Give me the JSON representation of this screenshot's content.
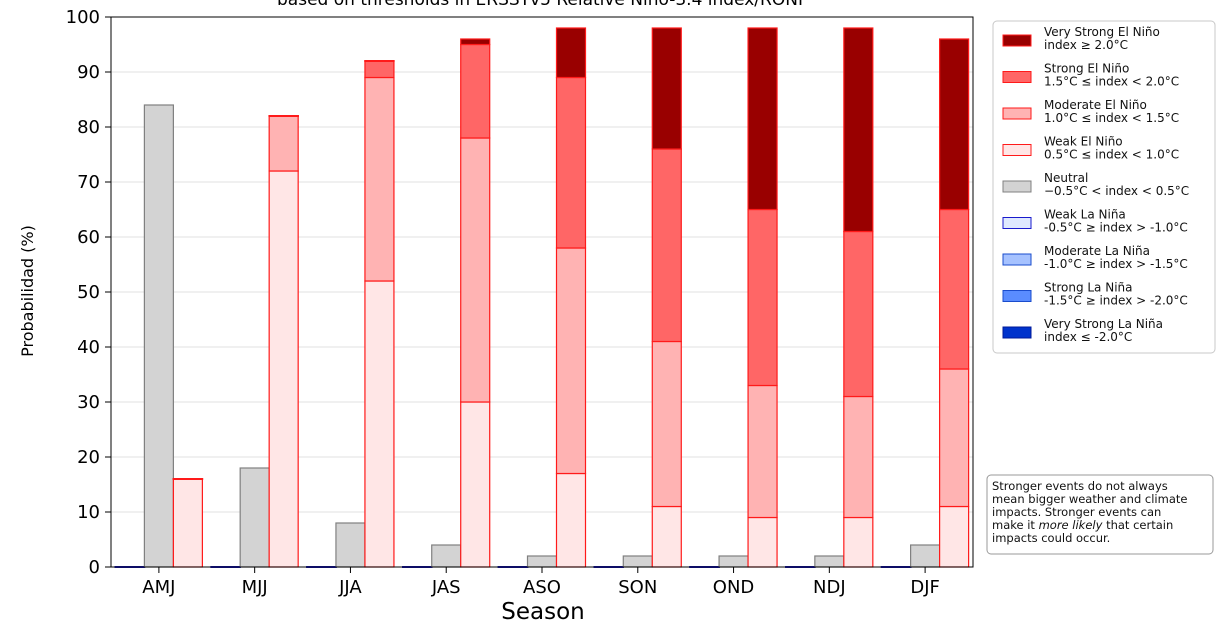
{
  "chart_data": {
    "type": "bar",
    "title": "based on thresholds in ERSSTv5 Relative Niño-3.4 index/RONI",
    "xlabel": "Season",
    "ylabel": "Probabilidad (%)",
    "ylim": [
      0,
      100
    ],
    "yticks": [
      "0",
      "10",
      "20",
      "30",
      "40",
      "50",
      "60",
      "70",
      "80",
      "90",
      "100"
    ],
    "grid": "horizontal",
    "legend_position": "right",
    "categories": [
      "AMJ",
      "MJJ",
      "JJA",
      "JAS",
      "ASO",
      "SON",
      "OND",
      "NDJ",
      "DJF"
    ],
    "stack_groups": [
      {
        "group": "La Niña",
        "series": [
          "Very Strong La Niña",
          "Strong La Niña",
          "Moderate La Niña",
          "Weak La Niña"
        ]
      },
      {
        "group": "Neutral",
        "series": [
          "Neutral"
        ]
      },
      {
        "group": "El Niño",
        "series": [
          "Weak El Niño",
          "Moderate El Niño",
          "Strong El Niño",
          "Very Strong El Niño"
        ]
      }
    ],
    "series": [
      {
        "name": "Very Strong El Niño",
        "range": "index ≥ 2.0°C",
        "fill": "#990000",
        "edge": "#ff1a1a",
        "values": [
          0,
          0,
          0,
          1,
          9,
          22,
          33,
          37,
          31
        ]
      },
      {
        "name": "Strong El Niño",
        "range": "1.5°C ≤ index < 2.0°C",
        "fill": "#ff6666",
        "edge": "#ff1a1a",
        "values": [
          0,
          0,
          3,
          17,
          31,
          35,
          32,
          30,
          29
        ]
      },
      {
        "name": "Moderate El Niño",
        "range": "1.0°C ≤ index < 1.5°C",
        "fill": "#ffb3b3",
        "edge": "#ff1a1a",
        "values": [
          0,
          10,
          37,
          48,
          41,
          30,
          24,
          22,
          25
        ]
      },
      {
        "name": "Weak El Niño",
        "range": "0.5°C ≤ index < 1.0°C",
        "fill": "#ffe6e6",
        "edge": "#ff1a1a",
        "values": [
          16,
          72,
          52,
          30,
          17,
          11,
          9,
          9,
          11
        ]
      },
      {
        "name": "Neutral",
        "range": "−0.5°C < index < 0.5°C",
        "fill": "#d3d3d3",
        "edge": "#808080",
        "values": [
          84,
          18,
          8,
          4,
          2,
          2,
          2,
          2,
          4
        ]
      },
      {
        "name": "Weak La Niña",
        "range": "-0.5°C ≥ index > -1.0°C",
        "fill": "#dfe9ff",
        "edge": "#1a1acc",
        "values": [
          0,
          0,
          0,
          0,
          0,
          0,
          0,
          0,
          0
        ]
      },
      {
        "name": "Moderate La Niña",
        "range": "-1.0°C ≥ index > -1.5°C",
        "fill": "#a6c2ff",
        "edge": "#1a4ccc",
        "values": [
          0,
          0,
          0,
          0,
          0,
          0,
          0,
          0,
          0
        ]
      },
      {
        "name": "Strong La Niña",
        "range": "-1.5°C ≥ index > -2.0°C",
        "fill": "#5a8cff",
        "edge": "#1a4ccc",
        "values": [
          0,
          0,
          0,
          0,
          0,
          0,
          0,
          0,
          0
        ]
      },
      {
        "name": "Very Strong La Niña",
        "range": "index ≤ -2.0°C",
        "fill": "#0033cc",
        "edge": "#001a99",
        "values": [
          0,
          0,
          0,
          0,
          0,
          0,
          0,
          0,
          0
        ]
      }
    ],
    "note": [
      "Stronger events do not always",
      "mean bigger weather and climate",
      "impacts. Stronger events can",
      "make it |more likely| that certain",
      "impacts could occur."
    ]
  }
}
